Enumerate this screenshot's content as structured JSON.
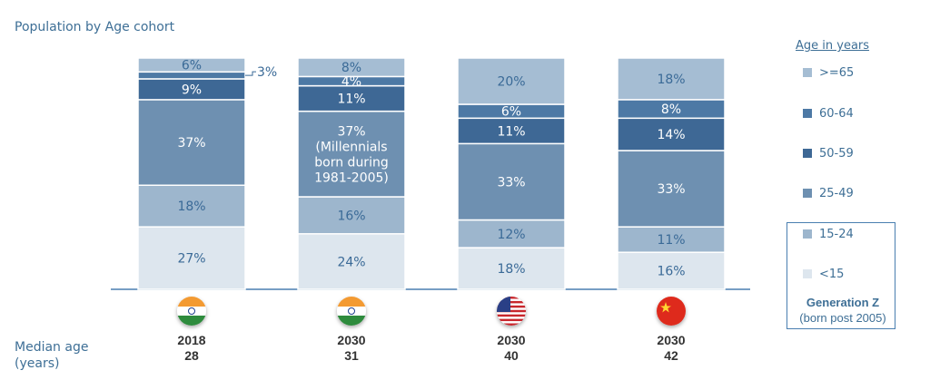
{
  "chart_data": {
    "type": "bar",
    "stacked": true,
    "title": "Population by Age cohort",
    "categories": [
      "2018",
      "2030",
      "2030",
      "2030"
    ],
    "countries": [
      "India",
      "India",
      "USA",
      "China"
    ],
    "median_label": "Median age\n(years)",
    "median_ages": [
      "28",
      "31",
      "40",
      "42"
    ],
    "ylim": [
      0,
      100
    ],
    "series": [
      {
        "name": "<15",
        "values": [
          27,
          24,
          18,
          16
        ],
        "labels": [
          "27%",
          "24%",
          "18%",
          "16%"
        ]
      },
      {
        "name": "15-24",
        "values": [
          18,
          16,
          12,
          11
        ],
        "labels": [
          "18%",
          "16%",
          "12%",
          "11%"
        ]
      },
      {
        "name": "25-49",
        "values": [
          37,
          37,
          33,
          33
        ],
        "labels": [
          "37%",
          "37%\n(Millennials\nborn during\n1981-2005)",
          "33%",
          "33%"
        ]
      },
      {
        "name": "50-59",
        "values": [
          9,
          11,
          11,
          14
        ],
        "labels": [
          "9%",
          "11%",
          "11%",
          "14%"
        ]
      },
      {
        "name": "60-64",
        "values": [
          3,
          4,
          6,
          8
        ],
        "labels": [
          "3%",
          "4%",
          "6%",
          "8%"
        ]
      },
      {
        "name": ">=65",
        "values": [
          6,
          8,
          20,
          18
        ],
        "labels": [
          "6%",
          "8%",
          "20%",
          "18%"
        ]
      }
    ],
    "legend_title": "Age in years",
    "legend_placement": "right",
    "grid": false
  },
  "colors": {
    "<15": "#dde6ee",
    "15-24": "#9db6cd",
    "25-49": "#6e90b1",
    "50-59": "#3e6895",
    "60-64": "#4d79a5",
    ">=65": "#a5bdd3",
    "text_dark": "#3a6a97",
    "text_light": "#ffffff",
    "axis": "#4a7fb0"
  },
  "legend": {
    "title": "Age in years",
    "items": [
      ">=65",
      "60-64",
      "50-59",
      "25-49",
      "15-24",
      "<15"
    ]
  },
  "gen_z": {
    "title": "Generation  Z",
    "subtitle": "(born post 2005)"
  },
  "columns": [
    {
      "year": "2018",
      "median": "28",
      "flag_icon": "india-flag-icon"
    },
    {
      "year": "2030",
      "median": "31",
      "flag_icon": "india-flag-icon"
    },
    {
      "year": "2030",
      "median": "40",
      "flag_icon": "usa-flag-icon"
    },
    {
      "year": "2030",
      "median": "42",
      "flag_icon": "china-flag-icon"
    }
  ]
}
